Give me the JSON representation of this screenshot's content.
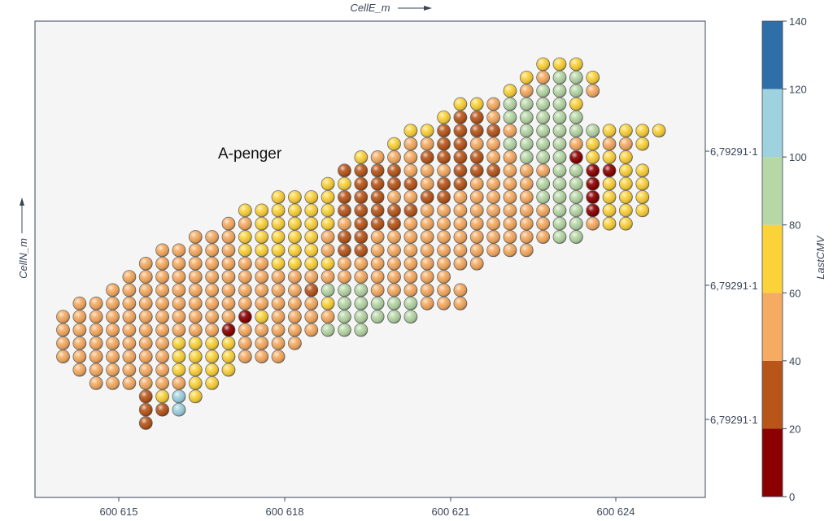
{
  "chart_data": {
    "type": "scatter",
    "title": "",
    "xlabel": "CellE_m",
    "ylabel": "CellN_m",
    "colorbar_label": "LastCMV",
    "x_ticks": [
      "600 615",
      "600 618",
      "600 621",
      "600 624"
    ],
    "x_tick_values": [
      600615,
      600618,
      600621,
      600624
    ],
    "y_ticks": [
      "6,79291·1",
      "6,79291·1",
      "6,79291·1"
    ],
    "colorbar_ticks": [
      "0",
      "20",
      "40",
      "60",
      "80",
      "100",
      "120",
      "140"
    ],
    "colorbar_bins": [
      {
        "from": 0,
        "to": 20,
        "color": "#8b0000"
      },
      {
        "from": 20,
        "to": 40,
        "color": "#b8561a"
      },
      {
        "from": 40,
        "to": 60,
        "color": "#f6ab62"
      },
      {
        "from": 60,
        "to": 80,
        "color": "#fcd23a"
      },
      {
        "from": 80,
        "to": 100,
        "color": "#b7d7a6"
      },
      {
        "from": 100,
        "to": 120,
        "color": "#9fd2df"
      },
      {
        "from": 120,
        "to": 140,
        "color": "#2e6ea9"
      }
    ],
    "annotation": "A-penger",
    "grid": false,
    "marker": "shaded-sphere",
    "cell_size_m": 0.3,
    "grid_origin": {
      "col0_easting": 600613.7
    },
    "rows_note": "rows listed top to bottom; each character is one cell: O=40-60, Y=60-80, B=20-40, R=0-20, G=80-100, L=100-120, .=no data",
    "rows": [
      {
        "row": 0,
        "start_col": 29,
        "cells": "YYY"
      },
      {
        "row": 1,
        "start_col": 28,
        "cells": "YOGGY"
      },
      {
        "row": 2,
        "start_col": 27,
        "cells": "YOGGGO"
      },
      {
        "row": 3,
        "start_col": 24,
        "cells": "YYOGGGGY"
      },
      {
        "row": 4,
        "start_col": 23,
        "cells": "YBBOGGGGG"
      },
      {
        "row": 5,
        "start_col": 21,
        "cells": "YYBBBBOGGGGGYYYY"
      },
      {
        "row": 6,
        "start_col": 20,
        "cells": "YOOBBOOGGGGOYOOY"
      },
      {
        "row": 7,
        "start_col": 18,
        "cells": "YOOOBBBBOOGGGRYYY"
      },
      {
        "row": 8,
        "start_col": 17,
        "cells": "BBBBOOOBBBOOOGGRRYY"
      },
      {
        "row": 9,
        "start_col": 16,
        "cells": "YYBBBBOBBOOOOGGGRYYY"
      },
      {
        "row": 10,
        "start_col": 13,
        "cells": "YYYYBBBOOBBOOOOOGGGRYYY"
      },
      {
        "row": 11,
        "start_col": 11,
        "cells": "YYYYYYBBBBBOOOOOOOOGGRYYY"
      },
      {
        "row": 12,
        "start_col": 10,
        "cells": "OOYYYYYOBBBOOOOOOOOOGGOYY"
      },
      {
        "row": 13,
        "start_col": 8,
        "cells": "OOOYYYYYOBBOOOOOOOOOOOGG"
      },
      {
        "row": 14,
        "start_col": 6,
        "cells": "OOOOOYYYYYOBBOOOOOOOOOO"
      },
      {
        "row": 15,
        "start_col": 5,
        "cells": "OOOOOOOOYYYYOOOOOOOOO"
      },
      {
        "row": 16,
        "start_col": 4,
        "cells": "OOOOOOOOOOOOOOOOOOOO"
      },
      {
        "row": 17,
        "start_col": 3,
        "cells": "OOOOOOOOOOOOBGGGOOOOOO"
      },
      {
        "row": 18,
        "start_col": 1,
        "cells": "OOOOOOOOOOOOOOOYGGGGGOOO"
      },
      {
        "row": 19,
        "start_col": 0,
        "cells": "OOOOOOOOOOORYOOOOGGGGG"
      },
      {
        "row": 20,
        "start_col": 0,
        "cells": "OOOOOOOOOOROOOOOGGG"
      },
      {
        "row": 21,
        "start_col": 0,
        "cells": "OOOOOOOYYYYOOOO"
      },
      {
        "row": 22,
        "start_col": 0,
        "cells": "OOOOOOOYYYYOOO"
      },
      {
        "row": 23,
        "start_col": 1,
        "cells": "OOOOOOYYYY"
      },
      {
        "row": 24,
        "start_col": 2,
        "cells": "OOOOOOYY"
      },
      {
        "row": 25,
        "start_col": 5,
        "cells": "BYLY"
      },
      {
        "row": 26,
        "start_col": 5,
        "cells": "BBL"
      },
      {
        "row": 27,
        "start_col": 5,
        "cells": "B"
      }
    ]
  }
}
